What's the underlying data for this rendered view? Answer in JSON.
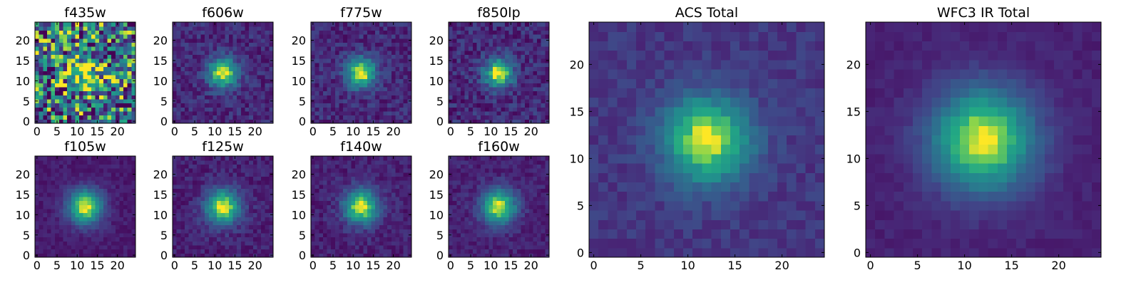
{
  "figure": {
    "background": "#ffffff"
  },
  "chart_data": [
    {
      "type": "heatmap",
      "title": "f435w",
      "xlabel": "",
      "ylabel": "",
      "colormap": "viridis",
      "grid_size": 25,
      "xlim": [
        -0.5,
        24.5
      ],
      "ylim": [
        -0.5,
        24.5
      ],
      "xticks": [
        0,
        5,
        10,
        15,
        20
      ],
      "yticks": [
        0,
        5,
        10,
        15,
        20
      ],
      "peak": [
        12,
        12
      ],
      "sigma": 3.2,
      "noise": 0.55,
      "background_level": 0.45,
      "seed": 11
    },
    {
      "type": "heatmap",
      "title": "f606w",
      "xlabel": "",
      "ylabel": "",
      "colormap": "viridis",
      "grid_size": 25,
      "xlim": [
        -0.5,
        24.5
      ],
      "ylim": [
        -0.5,
        24.5
      ],
      "xticks": [
        0,
        5,
        10,
        15,
        20
      ],
      "yticks": [
        0,
        5,
        10,
        15,
        20
      ],
      "peak": [
        12,
        12
      ],
      "sigma": 2.6,
      "noise": 0.12,
      "background_level": 0.15,
      "seed": 23
    },
    {
      "type": "heatmap",
      "title": "f775w",
      "xlabel": "",
      "ylabel": "",
      "colormap": "viridis",
      "grid_size": 25,
      "xlim": [
        -0.5,
        24.5
      ],
      "ylim": [
        -0.5,
        24.5
      ],
      "xticks": [
        0,
        5,
        10,
        15,
        20
      ],
      "yticks": [
        0,
        5,
        10,
        15,
        20
      ],
      "peak": [
        12,
        12
      ],
      "sigma": 2.6,
      "noise": 0.12,
      "background_level": 0.15,
      "seed": 37
    },
    {
      "type": "heatmap",
      "title": "f850lp",
      "xlabel": "",
      "ylabel": "",
      "colormap": "viridis",
      "grid_size": 25,
      "xlim": [
        -0.5,
        24.5
      ],
      "ylim": [
        -0.5,
        24.5
      ],
      "xticks": [
        0,
        5,
        10,
        15,
        20
      ],
      "yticks": [
        0,
        5,
        10,
        15,
        20
      ],
      "peak": [
        12,
        12
      ],
      "sigma": 2.5,
      "noise": 0.14,
      "background_level": 0.15,
      "seed": 41
    },
    {
      "type": "heatmap",
      "title": "f105w",
      "xlabel": "",
      "ylabel": "",
      "colormap": "viridis",
      "grid_size": 25,
      "xlim": [
        -0.5,
        24.5
      ],
      "ylim": [
        -0.5,
        24.5
      ],
      "xticks": [
        0,
        5,
        10,
        15,
        20
      ],
      "yticks": [
        0,
        5,
        10,
        15,
        20
      ],
      "peak": [
        12,
        12
      ],
      "sigma": 3.0,
      "noise": 0.06,
      "background_level": 0.1,
      "seed": 53
    },
    {
      "type": "heatmap",
      "title": "f125w",
      "xlabel": "",
      "ylabel": "",
      "colormap": "viridis",
      "grid_size": 25,
      "xlim": [
        -0.5,
        24.5
      ],
      "ylim": [
        -0.5,
        24.5
      ],
      "xticks": [
        0,
        5,
        10,
        15,
        20
      ],
      "yticks": [
        0,
        5,
        10,
        15,
        20
      ],
      "peak": [
        12,
        12
      ],
      "sigma": 3.0,
      "noise": 0.09,
      "background_level": 0.12,
      "seed": 67
    },
    {
      "type": "heatmap",
      "title": "f140w",
      "xlabel": "",
      "ylabel": "",
      "colormap": "viridis",
      "grid_size": 25,
      "xlim": [
        -0.5,
        24.5
      ],
      "ylim": [
        -0.5,
        24.5
      ],
      "xticks": [
        0,
        5,
        10,
        15,
        20
      ],
      "yticks": [
        0,
        5,
        10,
        15,
        20
      ],
      "peak": [
        12,
        12
      ],
      "sigma": 3.0,
      "noise": 0.09,
      "background_level": 0.12,
      "seed": 79
    },
    {
      "type": "heatmap",
      "title": "f160w",
      "xlabel": "",
      "ylabel": "",
      "colormap": "viridis",
      "grid_size": 25,
      "xlim": [
        -0.5,
        24.5
      ],
      "ylim": [
        -0.5,
        24.5
      ],
      "xticks": [
        0,
        5,
        10,
        15,
        20
      ],
      "yticks": [
        0,
        5,
        10,
        15,
        20
      ],
      "peak": [
        12,
        12
      ],
      "sigma": 3.0,
      "noise": 0.08,
      "background_level": 0.12,
      "seed": 83
    },
    {
      "type": "heatmap",
      "title": "ACS Total",
      "xlabel": "",
      "ylabel": "",
      "colormap": "viridis",
      "grid_size": 25,
      "xlim": [
        -0.5,
        24.5
      ],
      "ylim": [
        -0.5,
        24.5
      ],
      "xticks": [
        0,
        5,
        10,
        15,
        20
      ],
      "yticks": [
        0,
        5,
        10,
        15,
        20
      ],
      "peak": [
        12,
        12
      ],
      "sigma": 3.2,
      "noise": 0.07,
      "background_level": 0.2,
      "seed": 97
    },
    {
      "type": "heatmap",
      "title": "WFC3 IR Total",
      "xlabel": "",
      "ylabel": "",
      "colormap": "viridis",
      "grid_size": 25,
      "xlim": [
        -0.5,
        24.5
      ],
      "ylim": [
        -0.5,
        24.5
      ],
      "xticks": [
        0,
        5,
        10,
        15,
        20
      ],
      "yticks": [
        0,
        5,
        10,
        15,
        20
      ],
      "peak": [
        12,
        12
      ],
      "sigma": 3.8,
      "noise": 0.04,
      "background_level": 0.12,
      "seed": 101
    }
  ]
}
